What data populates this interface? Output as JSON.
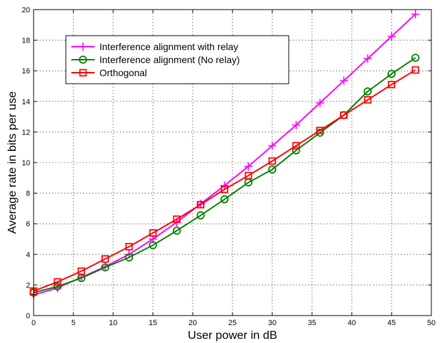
{
  "chart_data": {
    "type": "line",
    "xlabel": "User power  in dB",
    "ylabel": "Average rate in bits per use",
    "xlim": [
      0,
      50
    ],
    "ylim": [
      0,
      20
    ],
    "xticks": [
      0,
      5,
      10,
      15,
      20,
      25,
      30,
      35,
      40,
      45,
      50
    ],
    "yticks": [
      0,
      2,
      4,
      6,
      8,
      10,
      12,
      14,
      16,
      18,
      20
    ],
    "grid": true,
    "legend_position": "upper-left",
    "series": [
      {
        "name": "Interference alignment with relay",
        "color": "#ff00ff",
        "marker": "plus",
        "x": [
          0,
          3,
          6,
          9,
          12,
          15,
          18,
          21,
          24,
          27,
          30,
          33,
          36,
          39,
          42,
          45,
          48
        ],
        "y": [
          1.35,
          1.8,
          2.5,
          3.2,
          4.0,
          5.0,
          6.1,
          7.3,
          8.5,
          9.75,
          11.1,
          12.45,
          13.9,
          15.35,
          16.8,
          18.25,
          19.7
        ]
      },
      {
        "name": "Interference alignment (No relay)",
        "color": "#008000",
        "marker": "circle",
        "x": [
          0,
          3,
          6,
          9,
          12,
          15,
          18,
          21,
          24,
          27,
          30,
          33,
          36,
          39,
          42,
          45,
          48
        ],
        "y": [
          1.5,
          1.9,
          2.45,
          3.15,
          3.8,
          4.6,
          5.55,
          6.55,
          7.6,
          8.7,
          9.55,
          10.8,
          11.95,
          13.1,
          14.65,
          15.8,
          16.85
        ]
      },
      {
        "name": "Orthogonal",
        "color": "#ff0000",
        "marker": "square",
        "x": [
          0,
          3,
          6,
          9,
          12,
          15,
          18,
          21,
          24,
          27,
          30,
          33,
          36,
          39,
          42,
          45,
          48
        ],
        "y": [
          1.6,
          2.2,
          2.9,
          3.7,
          4.5,
          5.4,
          6.3,
          7.25,
          8.25,
          9.15,
          10.1,
          11.1,
          12.1,
          13.1,
          14.1,
          15.1,
          16.05
        ]
      }
    ]
  }
}
